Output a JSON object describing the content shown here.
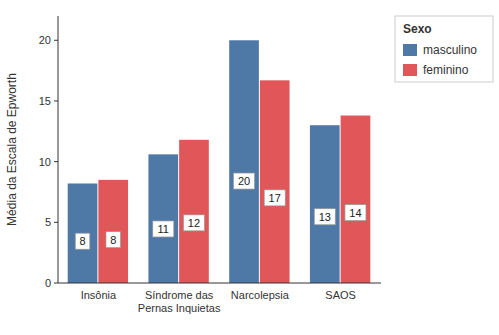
{
  "chart_data": {
    "type": "bar",
    "categories": [
      "Insônia",
      "Síndrome das\nPernas Inquietas",
      "Narcolepsia",
      "SAOS"
    ],
    "series": [
      {
        "name": "masculino",
        "color": "#4e79a7",
        "values": [
          8.2,
          10.6,
          20.0,
          13.0
        ],
        "value_labels": [
          "8",
          "11",
          "20",
          "13"
        ]
      },
      {
        "name": "feminino",
        "color": "#e15759",
        "values": [
          8.5,
          11.8,
          16.7,
          13.8
        ],
        "value_labels": [
          "8",
          "12",
          "17",
          "14"
        ]
      }
    ],
    "ylabel": "Média da Escala de Epworth",
    "legend_title": "Sexo",
    "legend": "right",
    "ylim": [
      0,
      22
    ],
    "yticks": [
      0,
      5,
      10,
      15,
      20
    ],
    "grid": false,
    "data_labels": true
  }
}
